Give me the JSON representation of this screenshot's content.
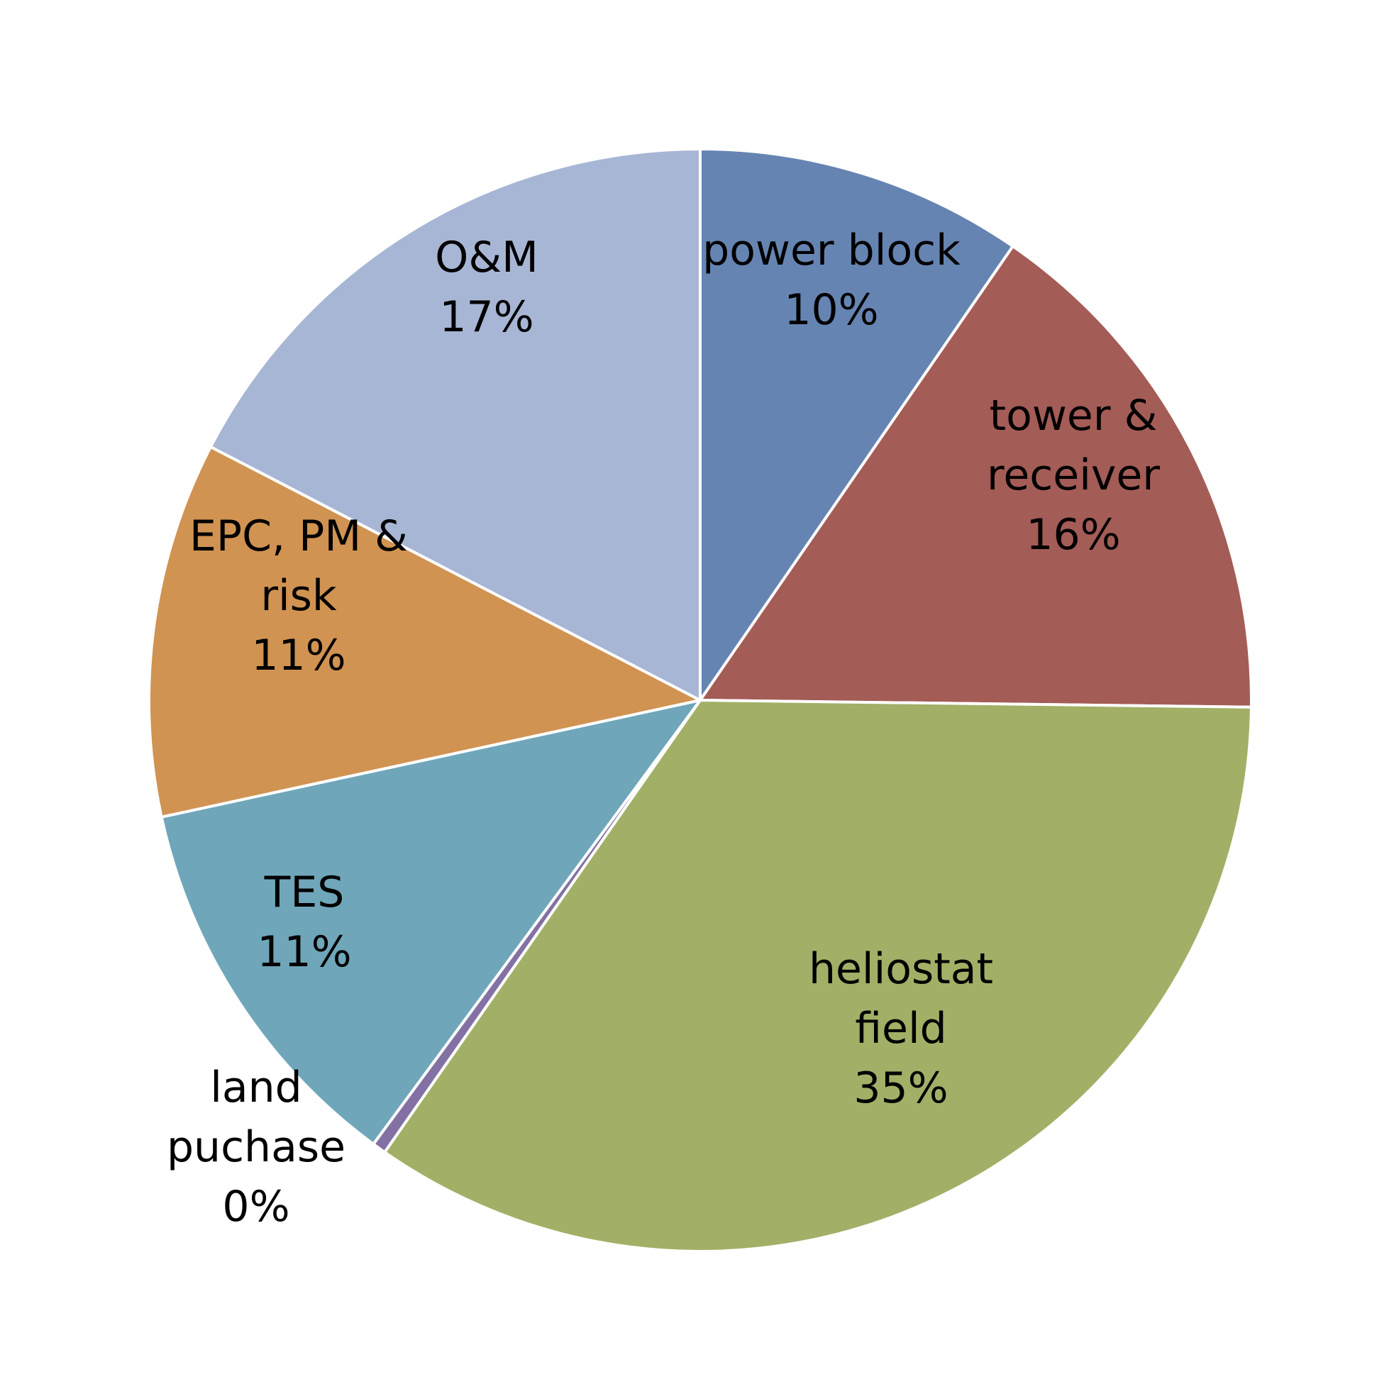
{
  "chart_data": {
    "type": "pie",
    "start_angle_deg": 0,
    "direction": "clockwise",
    "slices": [
      {
        "name": "power block",
        "value": 9.6,
        "label_lines": [
          "power block",
          "10%"
        ],
        "color": "#6684b2"
      },
      {
        "name": "tower & receiver",
        "value": 15.6,
        "label_lines": [
          "tower &",
          "receiver",
          "16%"
        ],
        "color": "#a45c56"
      },
      {
        "name": "heliostat field",
        "value": 34.5,
        "label_lines": [
          "heliostat",
          "field",
          "35%"
        ],
        "color": "#a1b066"
      },
      {
        "name": "land puchase",
        "value": 0.4,
        "label_lines": [
          "land",
          "puchase",
          "0%"
        ],
        "color": "#8371a4"
      },
      {
        "name": "TES",
        "value": 11.5,
        "label_lines": [
          "TES",
          "11%"
        ],
        "color": "#6fa6ba"
      },
      {
        "name": "EPC, PM & risk",
        "value": 11.0,
        "label_lines": [
          "EPC, PM &",
          "risk",
          "11%"
        ],
        "color": "#d19352"
      },
      {
        "name": "O&M",
        "value": 17.4,
        "label_lines": [
          "O&M",
          "17%"
        ],
        "color": "#a8b6d5"
      }
    ]
  }
}
